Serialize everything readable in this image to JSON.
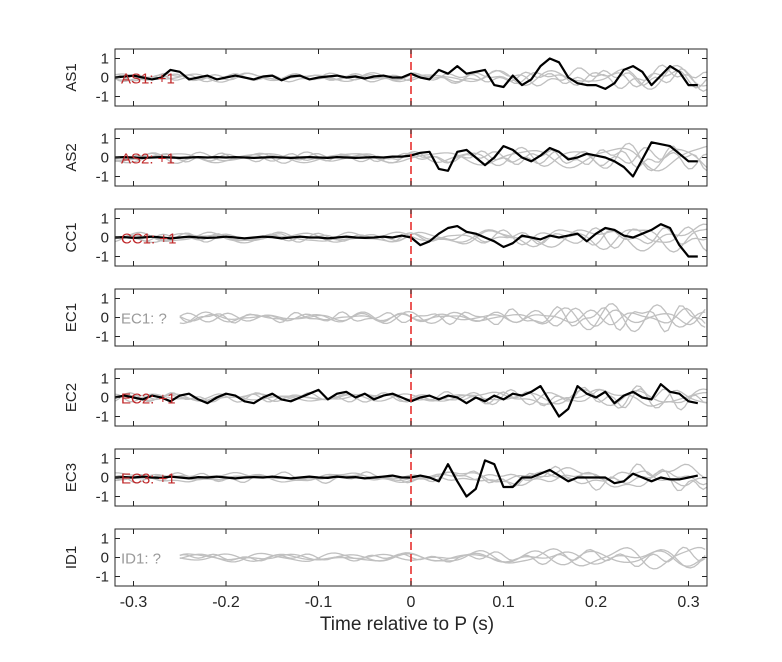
{
  "chart_data": {
    "type": "line",
    "xlabel": "Time relative to P (s)",
    "xlim": [
      -0.32,
      0.32
    ],
    "ylim": [
      -1.5,
      1.5
    ],
    "x_ticks": [
      -0.3,
      -0.2,
      -0.1,
      0,
      0.1,
      0.2,
      0.3
    ],
    "x_tick_labels": [
      "-0.3",
      "-0.2",
      "-0.1",
      "0",
      "0.1",
      "0.2",
      "0.3"
    ],
    "y_ticks": [
      1,
      0,
      -1
    ],
    "y_tick_labels": [
      "1",
      "0",
      "-1"
    ],
    "p_arrival_x": 0,
    "colors": {
      "trace": "#000000",
      "background": "#c0c0c0",
      "marker": "#e8302f",
      "label_positive": "#c0282a",
      "label_unknown": "#9a9a9a"
    },
    "panels": [
      {
        "station": "AS1",
        "label": "AS1: +1",
        "label_status": "positive",
        "x": [
          -0.32,
          -0.31,
          -0.3,
          -0.29,
          -0.28,
          -0.27,
          -0.26,
          -0.25,
          -0.24,
          -0.23,
          -0.22,
          -0.21,
          -0.2,
          -0.19,
          -0.18,
          -0.17,
          -0.16,
          -0.15,
          -0.14,
          -0.13,
          -0.12,
          -0.11,
          -0.1,
          -0.09,
          -0.08,
          -0.07,
          -0.06,
          -0.05,
          -0.04,
          -0.03,
          -0.02,
          -0.01,
          0.0,
          0.01,
          0.02,
          0.03,
          0.04,
          0.05,
          0.06,
          0.07,
          0.08,
          0.09,
          0.1,
          0.11,
          0.12,
          0.13,
          0.14,
          0.15,
          0.16,
          0.17,
          0.18,
          0.19,
          0.2,
          0.21,
          0.22,
          0.23,
          0.24,
          0.25,
          0.26,
          0.27,
          0.28,
          0.29,
          0.3,
          0.31
        ],
        "y": [
          0.0,
          0.05,
          0.1,
          0.0,
          -0.1,
          0.0,
          0.4,
          0.3,
          -0.1,
          0.0,
          0.1,
          -0.1,
          0.0,
          0.1,
          0.0,
          -0.1,
          0.05,
          0.1,
          -0.15,
          0.05,
          0.1,
          -0.1,
          0.0,
          0.05,
          0.1,
          0.0,
          0.05,
          -0.05,
          0.05,
          0.1,
          0.0,
          0.0,
          0.2,
          0.0,
          -0.1,
          0.4,
          0.2,
          0.6,
          0.2,
          0.3,
          0.4,
          -0.4,
          -0.5,
          0.1,
          -0.4,
          -0.1,
          0.6,
          1.0,
          0.8,
          0.0,
          -0.3,
          -0.4,
          -0.4,
          -0.6,
          -0.3,
          0.4,
          0.6,
          0.3,
          -0.4,
          0.1,
          0.6,
          0.3,
          -0.4,
          -0.4
        ]
      },
      {
        "station": "AS2",
        "label": "AS2: +1",
        "label_status": "positive",
        "x": [
          -0.32,
          -0.31,
          -0.3,
          -0.29,
          -0.28,
          -0.27,
          -0.26,
          -0.25,
          -0.24,
          -0.23,
          -0.22,
          -0.21,
          -0.2,
          -0.19,
          -0.18,
          -0.17,
          -0.16,
          -0.15,
          -0.14,
          -0.13,
          -0.12,
          -0.11,
          -0.1,
          -0.09,
          -0.08,
          -0.07,
          -0.06,
          -0.05,
          -0.04,
          -0.03,
          -0.02,
          -0.01,
          0.0,
          0.01,
          0.02,
          0.03,
          0.04,
          0.05,
          0.06,
          0.07,
          0.08,
          0.09,
          0.1,
          0.11,
          0.12,
          0.13,
          0.14,
          0.15,
          0.16,
          0.17,
          0.18,
          0.19,
          0.2,
          0.21,
          0.22,
          0.23,
          0.24,
          0.25,
          0.26,
          0.27,
          0.28,
          0.29,
          0.3,
          0.31
        ],
        "y": [
          0.0,
          0.02,
          0.0,
          -0.02,
          0.0,
          0.02,
          0.0,
          -0.02,
          0.0,
          0.02,
          0.0,
          0.02,
          0.0,
          0.02,
          0.0,
          -0.02,
          0.0,
          0.02,
          0.0,
          -0.02,
          0.0,
          0.02,
          0.0,
          -0.02,
          0.02,
          0.0,
          -0.02,
          0.0,
          0.02,
          0.0,
          0.05,
          0.05,
          0.1,
          0.25,
          0.3,
          -0.6,
          -0.7,
          0.3,
          0.4,
          0.0,
          -0.4,
          0.0,
          0.6,
          0.4,
          0.0,
          -0.2,
          0.1,
          0.5,
          0.3,
          -0.1,
          0.0,
          0.2,
          0.1,
          0.0,
          -0.2,
          -0.5,
          -1.0,
          -0.1,
          0.8,
          0.7,
          0.6,
          0.2,
          -0.2,
          -0.2
        ]
      },
      {
        "station": "CC1",
        "label": "CC1: +1",
        "label_status": "positive",
        "x": [
          -0.32,
          -0.31,
          -0.3,
          -0.29,
          -0.28,
          -0.27,
          -0.26,
          -0.25,
          -0.24,
          -0.23,
          -0.22,
          -0.21,
          -0.2,
          -0.19,
          -0.18,
          -0.17,
          -0.16,
          -0.15,
          -0.14,
          -0.13,
          -0.12,
          -0.11,
          -0.1,
          -0.09,
          -0.08,
          -0.07,
          -0.06,
          -0.05,
          -0.04,
          -0.03,
          -0.02,
          -0.01,
          0.0,
          0.01,
          0.02,
          0.03,
          0.04,
          0.05,
          0.06,
          0.07,
          0.08,
          0.09,
          0.1,
          0.11,
          0.12,
          0.13,
          0.14,
          0.15,
          0.16,
          0.17,
          0.18,
          0.19,
          0.2,
          0.21,
          0.22,
          0.23,
          0.24,
          0.25,
          0.26,
          0.27,
          0.28,
          0.29,
          0.3,
          0.31
        ],
        "y": [
          0.0,
          0.02,
          -0.02,
          0.0,
          0.05,
          0.0,
          -0.05,
          0.0,
          0.05,
          0.0,
          -0.02,
          0.0,
          0.05,
          0.0,
          -0.05,
          0.0,
          0.05,
          0.02,
          -0.05,
          0.0,
          0.05,
          0.0,
          0.0,
          -0.05,
          0.0,
          0.05,
          0.0,
          -0.02,
          0.0,
          0.05,
          0.0,
          0.1,
          0.0,
          -0.4,
          -0.2,
          0.2,
          0.5,
          0.6,
          0.3,
          0.2,
          0.0,
          -0.2,
          -0.5,
          -0.3,
          0.1,
          0.0,
          -0.1,
          0.1,
          0.0,
          0.1,
          0.2,
          -0.2,
          0.2,
          0.5,
          0.4,
          0.1,
          0.0,
          0.2,
          0.4,
          0.7,
          0.5,
          -0.4,
          -1.0,
          -1.0
        ]
      },
      {
        "station": "EC1",
        "label": "EC1: ?",
        "label_status": "unknown",
        "x": [],
        "y": []
      },
      {
        "station": "EC2",
        "label": "EC2: +1",
        "label_status": "positive",
        "x": [
          -0.32,
          -0.31,
          -0.3,
          -0.29,
          -0.28,
          -0.27,
          -0.26,
          -0.25,
          -0.24,
          -0.23,
          -0.22,
          -0.21,
          -0.2,
          -0.19,
          -0.18,
          -0.17,
          -0.16,
          -0.15,
          -0.14,
          -0.13,
          -0.12,
          -0.11,
          -0.1,
          -0.09,
          -0.08,
          -0.07,
          -0.06,
          -0.05,
          -0.04,
          -0.03,
          -0.02,
          -0.01,
          0.0,
          0.01,
          0.02,
          0.03,
          0.04,
          0.05,
          0.06,
          0.07,
          0.08,
          0.09,
          0.1,
          0.11,
          0.12,
          0.13,
          0.14,
          0.15,
          0.16,
          0.17,
          0.18,
          0.19,
          0.2,
          0.21,
          0.22,
          0.23,
          0.24,
          0.25,
          0.26,
          0.27,
          0.28,
          0.29,
          0.3,
          0.31
        ],
        "y": [
          0.0,
          0.1,
          0.0,
          -0.1,
          0.1,
          0.0,
          -0.2,
          0.1,
          0.2,
          -0.1,
          -0.3,
          0.0,
          0.2,
          0.1,
          -0.2,
          -0.3,
          0.0,
          0.2,
          -0.1,
          -0.2,
          0.0,
          0.2,
          0.4,
          -0.1,
          0.2,
          0.3,
          0.0,
          0.2,
          -0.1,
          0.1,
          0.2,
          0.0,
          -0.2,
          0.0,
          0.1,
          -0.1,
          0.1,
          0.0,
          -0.3,
          0.0,
          -0.2,
          0.1,
          -0.1,
          0.2,
          0.1,
          0.3,
          0.6,
          -0.2,
          -1.0,
          -0.6,
          0.6,
          0.2,
          0.0,
          0.3,
          -0.3,
          0.1,
          0.3,
          0.0,
          -0.1,
          0.7,
          0.3,
          0.2,
          -0.2,
          -0.3
        ]
      },
      {
        "station": "EC3",
        "label": "EC3: +1",
        "label_status": "positive",
        "x": [
          -0.32,
          -0.31,
          -0.3,
          -0.29,
          -0.28,
          -0.27,
          -0.26,
          -0.25,
          -0.24,
          -0.23,
          -0.22,
          -0.21,
          -0.2,
          -0.19,
          -0.18,
          -0.17,
          -0.16,
          -0.15,
          -0.14,
          -0.13,
          -0.12,
          -0.11,
          -0.1,
          -0.09,
          -0.08,
          -0.07,
          -0.06,
          -0.05,
          -0.04,
          -0.03,
          -0.02,
          -0.01,
          0.0,
          0.01,
          0.02,
          0.03,
          0.04,
          0.05,
          0.06,
          0.07,
          0.08,
          0.09,
          0.1,
          0.11,
          0.12,
          0.13,
          0.14,
          0.15,
          0.16,
          0.17,
          0.18,
          0.19,
          0.2,
          0.21,
          0.22,
          0.23,
          0.24,
          0.25,
          0.26,
          0.27,
          0.28,
          0.29,
          0.3,
          0.31
        ],
        "y": [
          0.0,
          0.02,
          0.0,
          0.05,
          0.0,
          -0.02,
          0.05,
          0.0,
          -0.05,
          0.02,
          0.0,
          0.05,
          0.0,
          -0.05,
          0.0,
          0.02,
          0.0,
          0.05,
          0.0,
          -0.05,
          0.0,
          0.05,
          0.0,
          -0.02,
          0.05,
          0.0,
          0.02,
          -0.05,
          0.0,
          0.05,
          0.1,
          0.0,
          0.0,
          0.1,
          0.0,
          -0.2,
          0.7,
          -0.2,
          -1.0,
          -0.6,
          0.9,
          0.7,
          -0.5,
          -0.5,
          0.0,
          0.0,
          0.2,
          0.4,
          0.1,
          -0.2,
          0.0,
          0.0,
          0.0,
          0.0,
          -0.3,
          -0.2,
          0.2,
          0.0,
          -0.2,
          0.0,
          -0.1,
          -0.1,
          0.0,
          0.1
        ]
      },
      {
        "station": "ID1",
        "label": "ID1: ?",
        "label_status": "unknown",
        "x": [],
        "y": []
      }
    ]
  }
}
